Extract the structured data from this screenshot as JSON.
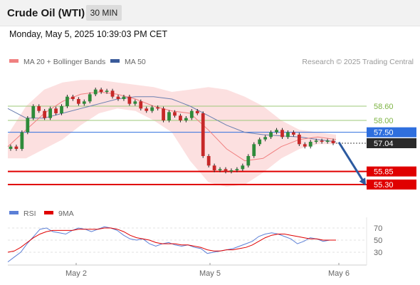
{
  "header": {
    "title": "Crude Oil (WTI)",
    "timeframe": "30 MIN",
    "timestamp": "Monday, May 5, 2025 10:39:03 PM CET"
  },
  "chart_data": [
    {
      "type": "candlestick",
      "legend": [
        {
          "name": "MA 20 + Bollinger Bands",
          "color": "#f08080"
        },
        {
          "name": "MA 50",
          "color": "#3a5a9a"
        }
      ],
      "credit": "Research © 2025 Trading Central",
      "x_ticks": [
        "May 2",
        "May 5",
        "May 6"
      ],
      "y_range": [
        54.9,
        59.4
      ],
      "last_price": 57.04,
      "levels": [
        {
          "value": 58.6,
          "label": "58.60",
          "kind": "resistance",
          "color": "#9ec87a"
        },
        {
          "value": 58.0,
          "label": "58.00",
          "kind": "resistance",
          "color": "#9ec87a"
        },
        {
          "value": 57.5,
          "label": "57.50",
          "kind": "pivot",
          "color": "#2f6fde"
        },
        {
          "value": 55.85,
          "label": "55.85",
          "kind": "support",
          "color": "#e00000"
        },
        {
          "value": 55.3,
          "label": "55.30",
          "kind": "support",
          "color": "#e00000"
        }
      ],
      "forecast_arrow": {
        "from": 57.08,
        "to": 55.3
      },
      "price_points": [
        56.9,
        56.8,
        57.5,
        58.1,
        58.6,
        58.4,
        58.1,
        58.5,
        58.3,
        58.6,
        59.0,
        58.9,
        58.7,
        58.8,
        59.1,
        59.3,
        59.2,
        59.25,
        59.0,
        58.9,
        59.0,
        58.7,
        58.8,
        58.5,
        58.4,
        58.55,
        58.5,
        58.0,
        58.35,
        58.2,
        58.0,
        58.1,
        58.4,
        58.3,
        56.5,
        56.1,
        55.9,
        55.95,
        55.85,
        55.9,
        55.95,
        56.1,
        56.5,
        57.0,
        57.2,
        57.3,
        57.5,
        57.6,
        57.3,
        57.5,
        57.4,
        57.0,
        56.9,
        57.1,
        57.15,
        57.1,
        57.15,
        57.04
      ],
      "price_points_note": "approximate closes read from candles, left to right",
      "bollinger_upper": [
        57.4,
        58.6,
        59.3,
        59.6,
        59.7,
        59.7,
        59.6,
        59.5,
        59.4,
        59.2,
        59.3,
        59.4,
        59.3,
        59.0,
        58.6,
        58.0,
        57.6,
        57.5,
        57.4
      ],
      "bollinger_lower": [
        56.4,
        56.4,
        56.8,
        57.2,
        57.8,
        58.3,
        58.5,
        58.4,
        58.0,
        57.5,
        56.3,
        55.4,
        55.2,
        55.3,
        55.8,
        56.4,
        56.8,
        57.0,
        57.0
      ],
      "ma20": [
        56.9,
        57.6,
        58.3,
        58.8,
        59.1,
        59.2,
        59.1,
        58.9,
        58.6,
        58.4,
        58.3,
        57.6,
        56.8,
        56.3,
        56.4,
        56.9,
        57.2,
        57.3,
        57.2
      ],
      "ma50": [
        58.5,
        58.1,
        58.1,
        58.3,
        58.5,
        58.7,
        58.9,
        59.0,
        59.0,
        58.9,
        58.6,
        58.2,
        57.8,
        57.5,
        57.4,
        57.35,
        57.3,
        57.2,
        57.1
      ]
    },
    {
      "type": "line",
      "legend": [
        {
          "name": "RSI",
          "color": "#5b7fd6"
        },
        {
          "name": "9MA",
          "color": "#e00000"
        }
      ],
      "y_ticks": [
        "70",
        "50",
        "30"
      ],
      "y_range": [
        8,
        80
      ],
      "series": [
        {
          "name": "RSI",
          "values": [
            14,
            22,
            30,
            44,
            56,
            68,
            70,
            64,
            62,
            60,
            66,
            70,
            68,
            64,
            68,
            72,
            70,
            66,
            58,
            52,
            50,
            52,
            44,
            40,
            44,
            46,
            42,
            40,
            42,
            38,
            36,
            28,
            30,
            32,
            34,
            36,
            40,
            44,
            48,
            56,
            60,
            62,
            60,
            56,
            52,
            44,
            48,
            54,
            52,
            48,
            50,
            50
          ]
        },
        {
          "name": "9MA",
          "values": [
            30,
            32,
            38,
            46,
            54,
            60,
            64,
            66,
            66,
            66,
            66,
            68,
            68,
            68,
            68,
            70,
            70,
            68,
            64,
            58,
            54,
            52,
            50,
            46,
            44,
            44,
            44,
            42,
            42,
            40,
            38,
            34,
            32,
            32,
            34,
            34,
            36,
            38,
            42,
            48,
            54,
            58,
            60,
            60,
            58,
            56,
            54,
            52,
            52,
            50,
            50,
            50
          ]
        }
      ]
    }
  ]
}
